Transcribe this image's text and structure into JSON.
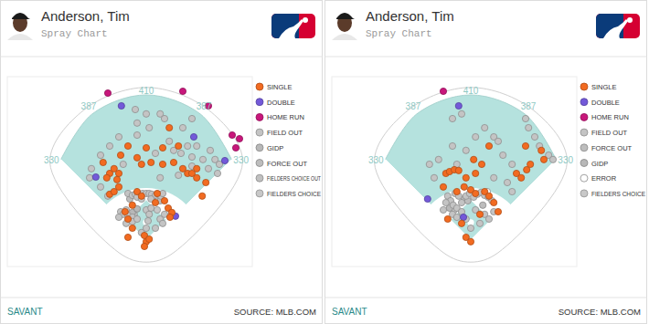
{
  "chart_data": [
    {
      "type": "scatter",
      "title": "Anderson, Tim",
      "subtitle": "Spray Chart",
      "brand": "SAVANT",
      "source": "SOURCE: MLB.COM",
      "fence_distances": [
        330,
        387,
        410,
        387,
        330
      ],
      "xlim": [
        -380,
        290
      ],
      "ylim": [
        -60,
        460
      ],
      "tick_labels": false,
      "legend": "right",
      "marker": "circle",
      "series": [
        {
          "name": "SINGLE",
          "color": "#f26b21",
          "x": [
            -118,
            -100,
            -88,
            -75,
            -108,
            -70,
            -80,
            -13,
            13,
            45,
            75,
            100,
            113,
            138,
            125,
            63,
            45,
            0,
            -50,
            -25,
            163,
            153,
            50,
            60,
            70,
            65,
            138,
            88,
            -100,
            -88,
            -75,
            -58,
            -50,
            -38,
            -50,
            -5,
            0,
            -5,
            8,
            25,
            30,
            -25,
            -13,
            -38
          ],
          "values": [
            225,
            195,
            208,
            195,
            183,
            245,
            178,
            220,
            225,
            220,
            225,
            208,
            195,
            208,
            195,
            320,
            265,
            265,
            270,
            238,
            170,
            133,
            120,
            100,
            88,
            75,
            183,
            270,
            138,
            145,
            158,
            90,
            70,
            108,
            20,
            25,
            8,
            -5,
            15,
            115,
            140,
            145,
            133,
            45
          ]
        },
        {
          "name": "DOUBLE",
          "color": "#7359d9",
          "x": [
            -68,
            130,
            -138,
            80,
            215
          ],
          "values": [
            380,
            295,
            185,
            78,
            230
          ]
        },
        {
          "name": "HOME RUN",
          "color": "#c8177b",
          "x": [
            -105,
            100,
            170,
            235,
            255,
            245
          ],
          "values": [
            415,
            420,
            380,
            300,
            290,
            265
          ]
        },
        {
          "name": "FIELD OUT",
          "color": "#c4c4c4",
          "x": [
            -30,
            0,
            38,
            50,
            100,
            125,
            138,
            175,
            188,
            200,
            195,
            170,
            155,
            113,
            95,
            75,
            25,
            -25,
            -75,
            -100,
            -125,
            -150,
            -155,
            -25,
            8,
            63,
            125,
            125,
            88,
            38,
            -63,
            -125,
            -105,
            -50,
            -38,
            -30,
            -20,
            -10,
            0,
            8,
            15,
            25,
            33,
            40,
            45,
            -25,
            -13,
            13,
            -55,
            -70,
            -63,
            -50,
            -38,
            -75,
            -55,
            -38,
            -25,
            0,
            8,
            13,
            38,
            45,
            50,
            -13,
            0,
            5,
            25
          ],
          "values": [
            370,
            358,
            358,
            345,
            320,
            345,
            270,
            258,
            233,
            220,
            195,
            208,
            233,
            270,
            250,
            258,
            250,
            300,
            295,
            270,
            245,
            208,
            183,
            333,
            320,
            283,
            240,
            215,
            190,
            183,
            220,
            158,
            133,
            140,
            135,
            138,
            138,
            140,
            140,
            140,
            138,
            135,
            138,
            133,
            140,
            130,
            125,
            125,
            95,
            90,
            83,
            80,
            75,
            75,
            58,
            63,
            70,
            95,
            83,
            100,
            70,
            58,
            83,
            33,
            45,
            65,
            45
          ]
        },
        {
          "name": "GIDP",
          "color": "#b8b8b8",
          "x": [
            -38,
            -25,
            20
          ],
          "values": [
            88,
            98,
            133
          ]
        },
        {
          "name": "FORCE OUT",
          "color": "#bdbdbd",
          "x": [
            -45,
            38
          ],
          "values": [
            125,
            120
          ]
        },
        {
          "name": "FIELDERS CHOICE OUT",
          "color": "#c0c0c0",
          "x": [
            -33
          ],
          "values": [
            83
          ]
        },
        {
          "name": "FIELDERS CHOICE",
          "color": "#c8c8c8",
          "x": [
            30
          ],
          "values": [
            95
          ]
        }
      ]
    },
    {
      "type": "scatter",
      "title": "Anderson, Tim",
      "subtitle": "Spray Chart",
      "brand": "SAVANT",
      "source": "SOURCE: MLB.COM",
      "fence_distances": [
        330,
        387,
        410,
        387,
        330
      ],
      "xlim": [
        -380,
        290
      ],
      "ylim": [
        -60,
        460
      ],
      "tick_labels": false,
      "legend": "right",
      "marker": "circle",
      "series": [
        {
          "name": "SINGLE",
          "color": "#f26b21",
          "x": [
            50,
            8,
            -68,
            -58,
            -45,
            -33,
            13,
            -13,
            30,
            125,
            138,
            153,
            163,
            150,
            193,
            200,
            -75,
            -38,
            -18,
            0,
            13,
            38,
            50,
            63,
            75,
            25,
            -25,
            -13,
            0,
            -63
          ],
          "values": [
            270,
            233,
            195,
            200,
            205,
            203,
            195,
            183,
            220,
            195,
            183,
            205,
            220,
            270,
            258,
            233,
            158,
            145,
            158,
            150,
            140,
            145,
            133,
            115,
            90,
            83,
            58,
            20,
            8,
            70
          ]
        },
        {
          "name": "DOUBLE",
          "color": "#7359d9",
          "x": [
            -33,
            -118,
            -20
          ],
          "values": [
            380,
            125,
            75
          ]
        },
        {
          "name": "HOME RUN",
          "color": "#c8177b",
          "x": [
            -75
          ],
          "values": [
            420
          ]
        },
        {
          "name": "FIELD OUT",
          "color": "#c4c4c4",
          "x": [
            -50,
            -25,
            63,
            75,
            88,
            113,
            150,
            158,
            175,
            188,
            213,
            225,
            -113,
            -88,
            -50,
            -13,
            13,
            38,
            100,
            113,
            63,
            -38,
            -100,
            -63,
            -55,
            -48,
            -38,
            -25,
            -13,
            -3,
            8,
            18,
            28,
            38,
            48,
            58,
            -50,
            -38,
            -25,
            13,
            38,
            50,
            -13,
            0,
            25,
            -75,
            -68,
            -43,
            -33,
            63
          ],
          "values": [
            345,
            358,
            295,
            283,
            245,
            220,
            345,
            320,
            295,
            270,
            245,
            233,
            220,
            233,
            270,
            258,
            295,
            320,
            170,
            145,
            183,
            220,
            183,
            133,
            120,
            108,
            100,
            115,
            133,
            140,
            130,
            138,
            143,
            135,
            130,
            120,
            83,
            75,
            90,
            95,
            83,
            70,
            70,
            45,
            58,
            95,
            115,
            140,
            133,
            90
          ]
        },
        {
          "name": "FORCE OUT",
          "color": "#bdbdbd",
          "x": [
            -8,
            33
          ],
          "values": [
            120,
            108
          ]
        },
        {
          "name": "GIDP",
          "color": "#b8b8b8",
          "x": [
            -18,
            -58
          ],
          "values": [
            125,
            100
          ]
        },
        {
          "name": "ERROR",
          "color": "#ffffff",
          "x": [
            45
          ],
          "values": [
            145
          ]
        },
        {
          "name": "FIELDERS CHOICE",
          "color": "#c8c8c8",
          "x": [
            -45
          ],
          "values": [
            95
          ]
        }
      ]
    }
  ]
}
